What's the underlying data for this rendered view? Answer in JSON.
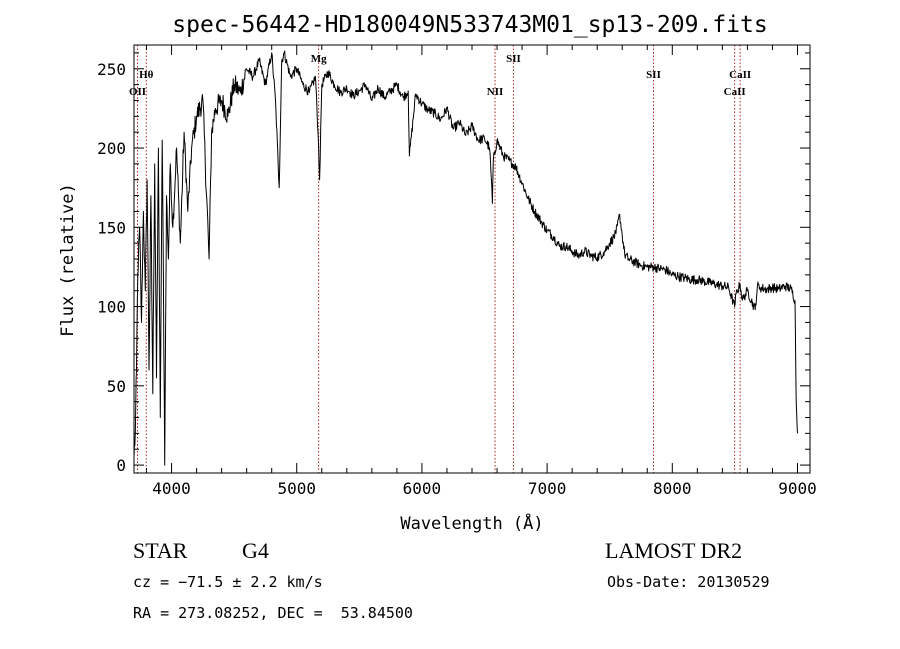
{
  "chart_data": {
    "type": "line",
    "title": "spec-56442-HD180049N533743M01_sp13-209.fits",
    "xlabel": "Wavelength (Å)",
    "ylabel": "Flux (relative)",
    "xlim": [
      3700,
      9100
    ],
    "ylim": [
      -5,
      265
    ],
    "x_ticks": [
      4000,
      5000,
      6000,
      7000,
      8000,
      9000
    ],
    "y_ticks": [
      0,
      50,
      100,
      150,
      200,
      250
    ],
    "grid": false,
    "series": [
      {
        "name": "flux",
        "color": "#000000",
        "x": [
          3700,
          3710,
          3720,
          3730,
          3745,
          3760,
          3775,
          3790,
          3805,
          3820,
          3835,
          3850,
          3865,
          3880,
          3895,
          3910,
          3925,
          3935,
          3945,
          3960,
          3975,
          3990,
          4010,
          4040,
          4070,
          4100,
          4130,
          4160,
          4200,
          4250,
          4300,
          4320,
          4350,
          4400,
          4450,
          4500,
          4550,
          4600,
          4650,
          4700,
          4750,
          4800,
          4830,
          4860,
          4880,
          4900,
          4950,
          5000,
          5050,
          5100,
          5150,
          5170,
          5183,
          5200,
          5250,
          5300,
          5350,
          5400,
          5450,
          5500,
          5550,
          5600,
          5650,
          5700,
          5750,
          5800,
          5850,
          5890,
          5900,
          5950,
          6000,
          6050,
          6100,
          6150,
          6200,
          6250,
          6300,
          6350,
          6400,
          6450,
          6500,
          6540,
          6555,
          6563,
          6570,
          6600,
          6650,
          6700,
          6750,
          6800,
          6850,
          6900,
          6950,
          7000,
          7050,
          7100,
          7150,
          7200,
          7250,
          7300,
          7350,
          7400,
          7450,
          7500,
          7550,
          7580,
          7600,
          7620,
          7650,
          7700,
          7750,
          7800,
          7850,
          7900,
          7950,
          8000,
          8050,
          8100,
          8150,
          8200,
          8250,
          8300,
          8350,
          8400,
          8450,
          8498,
          8510,
          8542,
          8560,
          8600,
          8662,
          8680,
          8700,
          8750,
          8800,
          8850,
          8900,
          8950,
          8980,
          8990,
          9000
        ],
        "values": [
          5,
          20,
          60,
          120,
          150,
          90,
          160,
          110,
          180,
          60,
          170,
          45,
          190,
          55,
          200,
          30,
          205,
          120,
          0,
          170,
          130,
          190,
          150,
          200,
          140,
          210,
          160,
          200,
          220,
          230,
          130,
          210,
          225,
          230,
          220,
          240,
          235,
          250,
          245,
          255,
          240,
          260,
          230,
          175,
          255,
          260,
          245,
          250,
          240,
          235,
          245,
          210,
          180,
          240,
          248,
          240,
          235,
          238,
          233,
          236,
          240,
          230,
          238,
          232,
          236,
          240,
          232,
          236,
          195,
          234,
          228,
          224,
          222,
          218,
          225,
          212,
          216,
          208,
          214,
          205,
          206,
          200,
          180,
          165,
          192,
          205,
          195,
          192,
          188,
          178,
          168,
          160,
          154,
          148,
          144,
          138,
          138,
          135,
          132,
          135,
          132,
          131,
          134,
          140,
          146,
          158,
          145,
          133,
          130,
          128,
          126,
          125,
          125,
          124,
          123,
          120,
          119,
          118,
          117,
          117,
          116,
          115,
          114,
          113,
          112,
          100,
          108,
          114,
          104,
          110,
          98,
          113,
          112,
          111,
          112,
          111,
          113,
          111,
          104,
          40,
          20
        ]
      }
    ],
    "line_markers": [
      {
        "label": "Hθ",
        "x": 3798,
        "label_row": 1
      },
      {
        "label": "OII",
        "x": 3728,
        "label_row": 2
      },
      {
        "label": "Mg",
        "x": 5175,
        "label_row": 0
      },
      {
        "label": "NII",
        "x": 6584,
        "label_row": 2
      },
      {
        "label": "SII",
        "x": 6731,
        "label_row": -1
      },
      {
        "label": "SII",
        "x": 7850,
        "label_row": 1
      },
      {
        "label": "CaII",
        "x": 8542,
        "label_row": 1
      },
      {
        "label": "CaII",
        "x": 8498,
        "label_row": 2
      }
    ]
  },
  "info": {
    "object_type": "STAR",
    "subclass": "G4",
    "survey": "LAMOST DR2",
    "velocity": "cz = −71.5 ± 2.2 km/s",
    "obs_date": "Obs-Date: 20130529",
    "coords": "RA = 273.08252, DEC =  53.84500"
  },
  "colors": {
    "marker_line": "#b22222",
    "spectrum": "#000000"
  }
}
